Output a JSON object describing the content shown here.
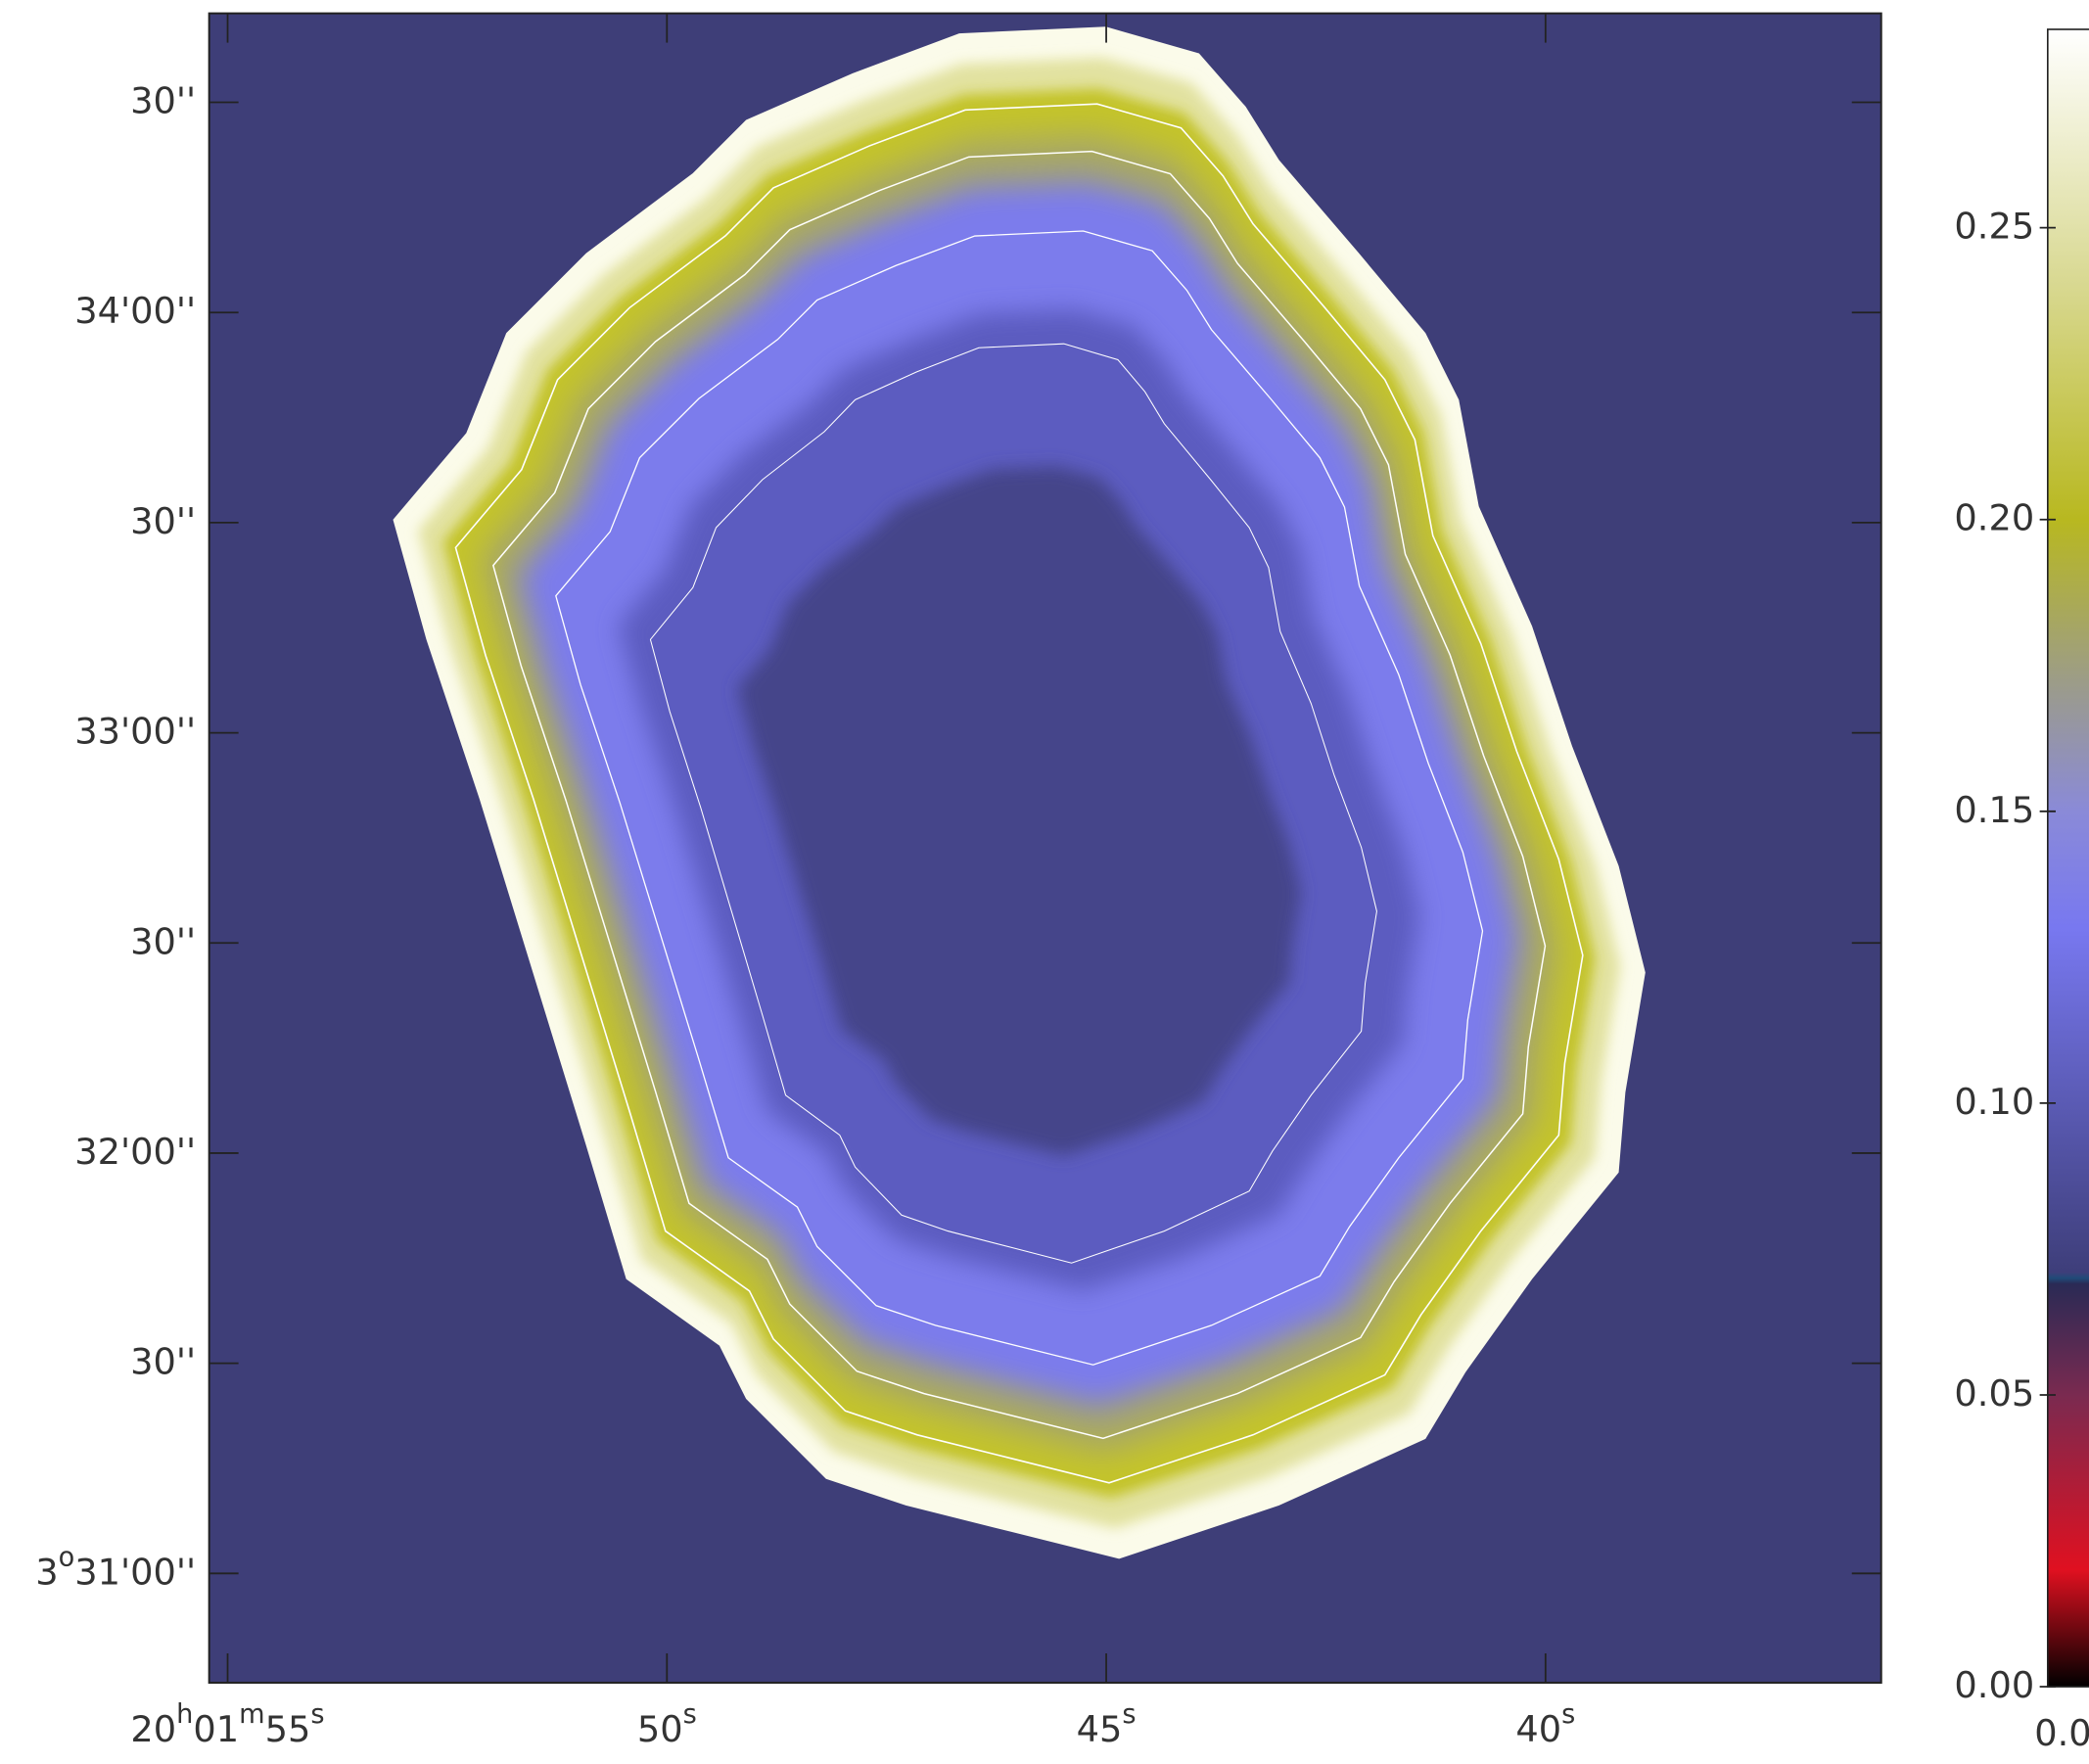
{
  "chart_data": {
    "type": "image",
    "xlim": [
      55.21,
      36.18
    ],
    "xticks": [
      {
        "value": 55,
        "label": "20h01m55s"
      },
      {
        "value": 50,
        "label": "50s"
      },
      {
        "value": 45,
        "label": "45s"
      },
      {
        "value": 40,
        "label": "40s"
      }
    ],
    "ylim": [
      1844.4,
      2082.7
    ],
    "yticks": [
      {
        "value": 1860,
        "label": "3o31'00''"
      },
      {
        "value": 1890,
        "label": "30''"
      },
      {
        "value": 1920,
        "label": "32'00''"
      },
      {
        "value": 1950,
        "label": "30''"
      },
      {
        "value": 1980,
        "label": "33'00''"
      },
      {
        "value": 2010,
        "label": "30''"
      },
      {
        "value": 2040,
        "label": "34'00''"
      },
      {
        "value": 2070,
        "label": "30''"
      }
    ],
    "background_color": "#3e3e78",
    "colorbar": {
      "zlim": [
        0,
        0.284
      ],
      "zticks": [
        {
          "value": 0,
          "label": "0.00"
        },
        {
          "value": 0.05,
          "label": "0.05"
        },
        {
          "value": 0.1,
          "label": "0.10"
        },
        {
          "value": 0.15,
          "label": "0.15"
        },
        {
          "value": 0.2,
          "label": "0.20"
        },
        {
          "value": 0.25,
          "label": "0.25"
        }
      ],
      "bottom_label": "0.0",
      "colormap": [
        [
          0,
          "#000000"
        ],
        [
          0.02,
          "#e01020"
        ],
        [
          0.05,
          "#7a2a50"
        ],
        [
          0.069,
          "#2a2a55"
        ],
        [
          0.07,
          "#204a78"
        ],
        [
          0.071,
          "#3e3e7a"
        ],
        [
          0.13,
          "#7878f0"
        ],
        [
          0.15,
          "#8a8ad8"
        ],
        [
          0.17,
          "#9a9a90"
        ],
        [
          0.2,
          "#b8b820"
        ],
        [
          0.24,
          "#d8d890"
        ],
        [
          0.284,
          "#ffffff"
        ]
      ]
    }
  }
}
